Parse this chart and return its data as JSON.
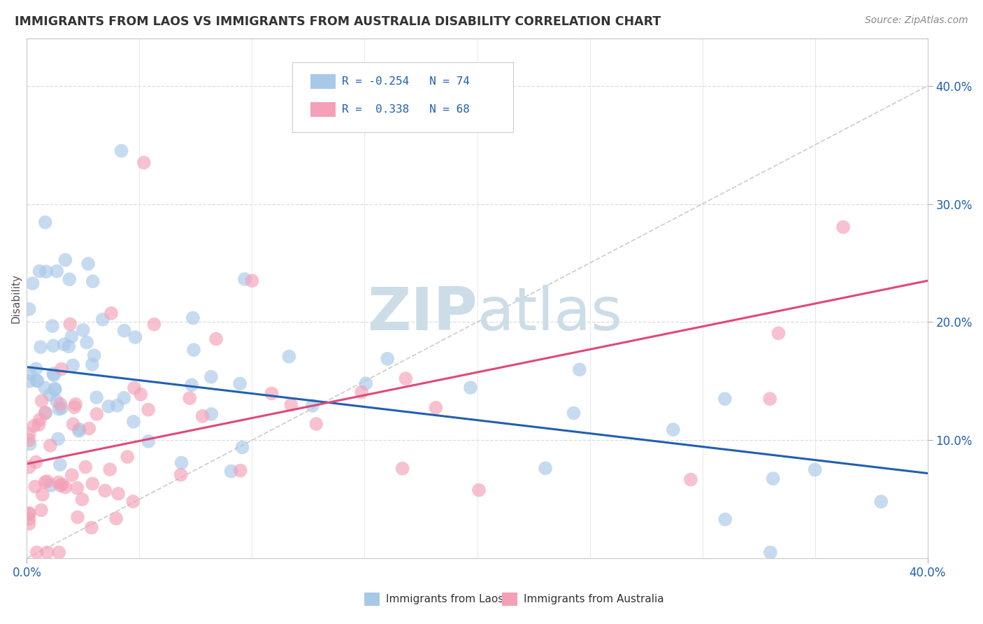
{
  "title": "IMMIGRANTS FROM LAOS VS IMMIGRANTS FROM AUSTRALIA DISABILITY CORRELATION CHART",
  "source": "Source: ZipAtlas.com",
  "ylabel": "Disability",
  "ylabel_right_ticks": [
    "10.0%",
    "20.0%",
    "30.0%",
    "40.0%"
  ],
  "ylabel_right_vals": [
    0.1,
    0.2,
    0.3,
    0.4
  ],
  "xlim": [
    0.0,
    0.4
  ],
  "ylim": [
    0.0,
    0.44
  ],
  "series1_label": "Immigrants from Laos",
  "series1_R": -0.254,
  "series1_N": 74,
  "series1_color": "#A8C8E8",
  "series1_line_color": "#2060B0",
  "series2_label": "Immigrants from Australia",
  "series2_R": 0.338,
  "series2_N": 68,
  "series2_color": "#F4A0B8",
  "series2_line_color": "#E04878",
  "ref_line_color": "#BBBBBB",
  "background_color": "#FFFFFF",
  "grid_color": "#DDDDDD",
  "title_color": "#333333",
  "source_color": "#888888",
  "watermark_color": "#CCDDE8",
  "legend_R_color": "#2060B0",
  "blue_line_x0": 0.0,
  "blue_line_y0": 0.162,
  "blue_line_x1": 0.4,
  "blue_line_y1": 0.072,
  "pink_line_x0": 0.0,
  "pink_line_y0": 0.08,
  "pink_line_x1": 0.4,
  "pink_line_y1": 0.235,
  "seed1": 7,
  "seed2": 13
}
